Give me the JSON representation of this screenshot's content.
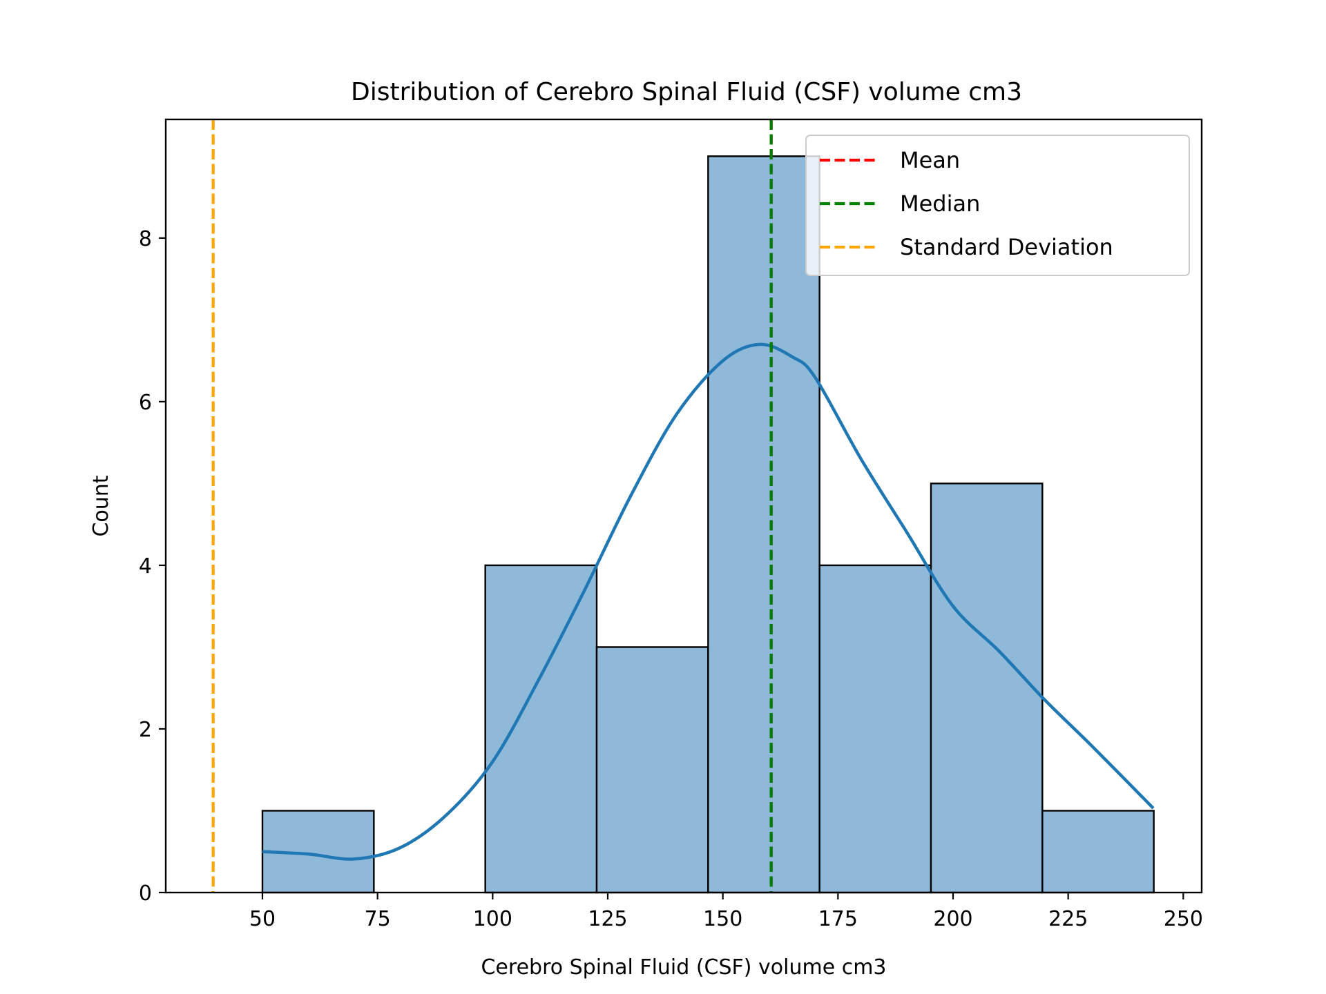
{
  "chart_data": {
    "type": "bar",
    "title": "Distribution of Cerebro Spinal Fluid (CSF) volume cm3",
    "xlabel": "Cerebro Spinal Fluid (CSF) volume cm3",
    "ylabel": "Count",
    "xlim": [
      29,
      254
    ],
    "ylim": [
      0,
      9.45
    ],
    "xticks": [
      50,
      75,
      100,
      125,
      150,
      175,
      200,
      225,
      250
    ],
    "yticks": [
      0,
      2,
      4,
      6,
      8
    ],
    "bar_color": "#8fb9d9",
    "bar_edge_color": "#000000",
    "bins": [
      {
        "x0": 50.0,
        "x1": 74.2,
        "count": 1
      },
      {
        "x0": 74.2,
        "x1": 98.4,
        "count": 0
      },
      {
        "x0": 98.4,
        "x1": 122.6,
        "count": 4
      },
      {
        "x0": 122.6,
        "x1": 146.8,
        "count": 3
      },
      {
        "x0": 146.8,
        "x1": 171.0,
        "count": 9
      },
      {
        "x0": 171.0,
        "x1": 195.2,
        "count": 4
      },
      {
        "x0": 195.2,
        "x1": 219.4,
        "count": 5
      },
      {
        "x0": 219.4,
        "x1": 243.6,
        "count": 1
      }
    ],
    "kde": {
      "color": "#1f77b4",
      "x": [
        50,
        60,
        70,
        80,
        90,
        100,
        110,
        120,
        130,
        140,
        150,
        158,
        165,
        170,
        180,
        190,
        200,
        210,
        220,
        230,
        243.5
      ],
      "y": [
        0.5,
        0.47,
        0.41,
        0.55,
        0.95,
        1.6,
        2.6,
        3.7,
        4.85,
        5.85,
        6.5,
        6.7,
        6.55,
        6.3,
        5.3,
        4.4,
        3.5,
        2.95,
        2.35,
        1.8,
        1.03
      ]
    },
    "lines": [
      {
        "name": "Mean",
        "x": 160.5,
        "color": "#ff0000",
        "style": "dashed"
      },
      {
        "name": "Median",
        "x": 160.5,
        "color": "#008000",
        "style": "dashed"
      },
      {
        "name": "Standard Deviation",
        "x": 39.3,
        "color": "#ffa500",
        "style": "dashed"
      }
    ],
    "legend": {
      "position": "top-right",
      "entries": [
        {
          "label": "Mean",
          "color": "#ff0000"
        },
        {
          "label": "Median",
          "color": "#008000"
        },
        {
          "label": "Standard Deviation",
          "color": "#ffa500"
        }
      ]
    },
    "grid": false
  }
}
